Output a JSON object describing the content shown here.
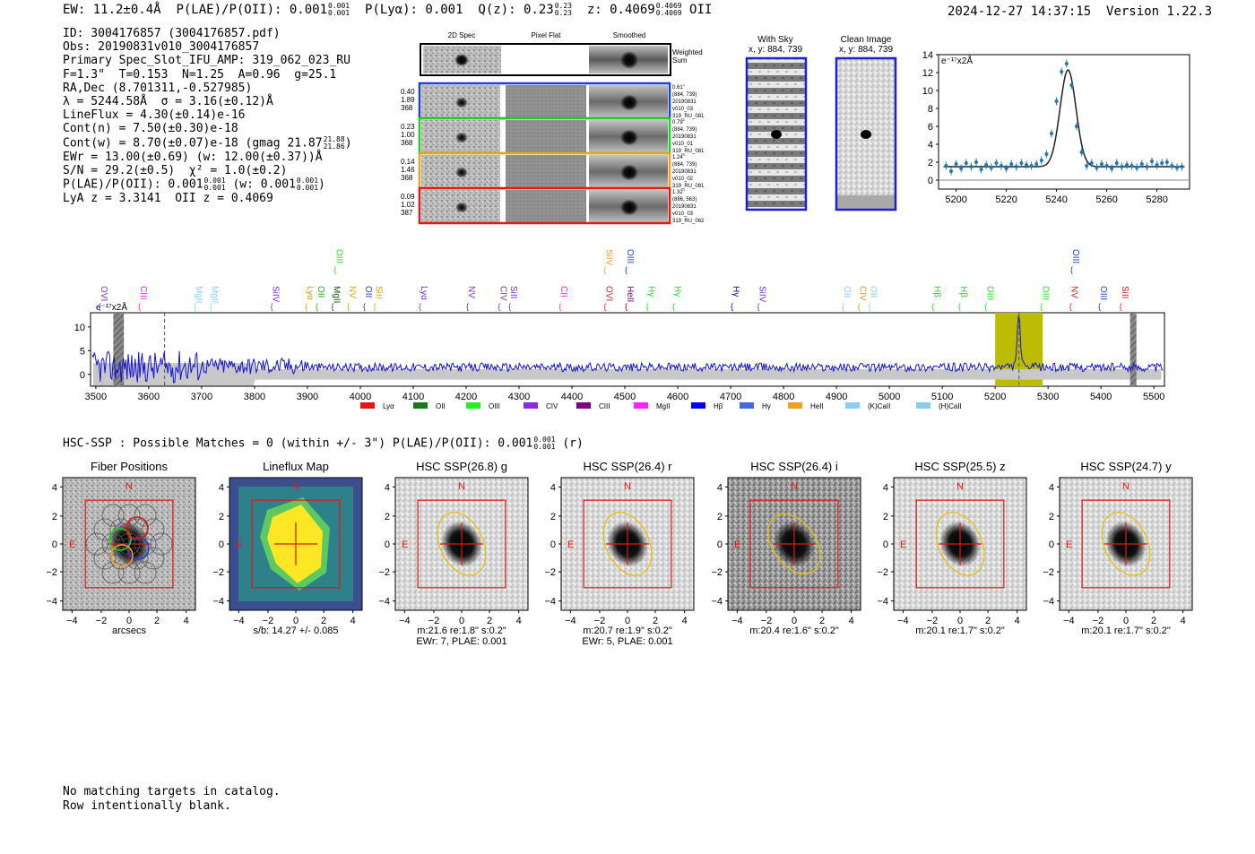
{
  "header": {
    "ew": "EW: 11.2±0.4Å",
    "plae_label": "P(LAE)/P(OII): 0.001",
    "plae_sup": "0.001",
    "plae_sub": "0.001",
    "plya": "P(Lyα): 0.001",
    "qz_label": "Q(z): 0.23",
    "qz_sup": "0.23",
    "qz_sub": "0.23",
    "z_label": "z: 0.4069",
    "z_sup": "0.4069",
    "z_sub": "0.4069",
    "z_line": "OII",
    "timestamp": "2024-12-27 14:37:15",
    "version": "Version 1.22.3"
  },
  "info": {
    "id": "ID: 3004176857 (3004176857.pdf)",
    "obs": "Obs: 20190831v010_3004176857",
    "primary": "Primary Spec_Slot_IFU_AMP: 319_062_023_RU",
    "fit": "F=1.3\"  T=0.153  N=1.25  A=0.96  g=25.1",
    "radec": "RA,Dec (8.701311,-0.527985)",
    "lambda": "λ = 5244.58Å  σ = 3.16(±0.12)Å",
    "lineflux": "LineFlux = 4.30(±0.14)e-16",
    "contn": "Cont(n) = 7.50(±0.30)e-18",
    "contw": "Cont(w) = 8.70(±0.07)e-18 (gmag 21.87",
    "contw_sup": "21.88",
    "contw_sub": "21.86",
    "contw_end": ")",
    "ewr": "EWr = 13.00(±0.69) (w: 12.00(±0.37))Å",
    "sn": "S/N = 29.2(±0.5)  χ² = 1.0(±0.2)",
    "plae": "P(LAE)/P(OII): 0.001",
    "plae_sup": "0.001",
    "plae_sub": "0.001",
    "plae_w": "(w: 0.001",
    "plae_w_sup": "0.001",
    "plae_w_sub": "0.001",
    "plae_w_end": ")",
    "lyaz": "LyA z = 3.3141  OII z = 0.4069"
  },
  "cutouts": {
    "col_titles": [
      "2D Spec",
      "Pixel Flat",
      "Smoothed"
    ],
    "weighted_label": "Weighted\nSum",
    "rows": [
      {
        "vals": [
          "0.40",
          "1.89",
          "368"
        ],
        "info": [
          "0.61\"",
          "(884, 739)",
          "20190831",
          "v010_03",
          "319_RU_081"
        ],
        "color": "#1f3fd1"
      },
      {
        "vals": [
          "0.23",
          "1.00",
          "368"
        ],
        "info": [
          "0.79\"",
          "(884, 739)",
          "20190831",
          "v010_01",
          "319_RU_081"
        ],
        "color": "#22cc22"
      },
      {
        "vals": [
          "0.14",
          "1.46",
          "368"
        ],
        "info": [
          "1.24\"",
          "(884, 739)",
          "20190831",
          "v010_02",
          "319_RU_081"
        ],
        "color": "#f0a020"
      },
      {
        "vals": [
          "0.09",
          "1.02",
          "387"
        ],
        "info": [
          "1.32\"",
          "(886, 563)",
          "20190831",
          "v010_03",
          "319_RU_062"
        ],
        "color": "#e01818"
      }
    ]
  },
  "sky_panels": [
    {
      "title": "With Sky",
      "coords": "x, y: 884, 739"
    },
    {
      "title": "Clean Image",
      "coords": "x, y: 884, 739"
    }
  ],
  "zoom_chart": {
    "type": "line",
    "ylabel": "e⁻¹⁷x2Å",
    "xlim": [
      5193,
      5293
    ],
    "ylim": [
      -1,
      14
    ],
    "xticks": [
      5200,
      5220,
      5240,
      5260,
      5280
    ],
    "yticks": [
      0,
      2,
      4,
      6,
      8,
      10,
      12,
      14
    ],
    "fit": {
      "continuum": 1.5,
      "amplitude": 10.8,
      "center": 5244.58,
      "sigma": 3.16
    },
    "points_x": [
      5196,
      5198,
      5200,
      5202,
      5204,
      5206,
      5208,
      5210,
      5212,
      5214,
      5216,
      5218,
      5220,
      5222,
      5224,
      5226,
      5228,
      5230,
      5232,
      5234,
      5236,
      5238,
      5240,
      5242,
      5244,
      5246,
      5248,
      5250,
      5252,
      5254,
      5256,
      5258,
      5260,
      5262,
      5264,
      5266,
      5268,
      5270,
      5272,
      5274,
      5276,
      5278,
      5280,
      5282,
      5284,
      5286,
      5288,
      5290
    ],
    "points_y": [
      1.6,
      1.0,
      1.8,
      1.3,
      1.9,
      1.5,
      2.0,
      1.2,
      1.7,
      1.4,
      1.9,
      1.6,
      1.3,
      1.8,
      1.5,
      1.9,
      1.7,
      1.6,
      1.8,
      2.2,
      2.9,
      5.2,
      8.8,
      12.1,
      13.0,
      10.6,
      6.0,
      3.1,
      1.6,
      1.9,
      1.4,
      1.8,
      1.6,
      1.3,
      1.9,
      1.5,
      1.7,
      1.6,
      1.4,
      1.8,
      1.5,
      2.1,
      1.7,
      1.9,
      2.0,
      1.6,
      1.4,
      1.5
    ]
  },
  "full_spectrum": {
    "type": "line",
    "ylabel": "e⁻¹⁷x2Å",
    "xlim": [
      3490,
      5520
    ],
    "ylim": [
      -2.5,
      13
    ],
    "xticks": [
      3500,
      3600,
      3700,
      3800,
      3900,
      4000,
      4100,
      4200,
      4300,
      4400,
      4500,
      4600,
      4700,
      4800,
      4900,
      5000,
      5100,
      5200,
      5300,
      5400,
      5500
    ],
    "yticks": [
      0,
      5,
      10
    ],
    "peak": {
      "center": 5244.6,
      "amplitude": 10.5,
      "sigma": 3.2
    },
    "highlight_band": [
      5200,
      5290
    ],
    "masked_bands": [
      [
        3533,
        3553
      ],
      [
        5455,
        5467
      ]
    ],
    "dashed_lines": [
      3630,
      5245
    ],
    "line_labels": [
      {
        "name": "OVI",
        "x": 3510,
        "color": "#7b2fd4",
        "row": 1
      },
      {
        "name": "CIII",
        "x": 3585,
        "color": "#ff22ff",
        "row": 1
      },
      {
        "name": "MgII",
        "x": 3690,
        "color": "#87cefa",
        "row": 1
      },
      {
        "name": "MgII",
        "x": 3720,
        "color": "#87cefa",
        "row": 1
      },
      {
        "name": "SiIV",
        "x": 3835,
        "color": "#7b2fd4",
        "row": 1
      },
      {
        "name": "Lyα",
        "x": 3900,
        "color": "#e0a000",
        "row": 1
      },
      {
        "name": "OII",
        "x": 3920,
        "color": "#22aa22",
        "row": 1
      },
      {
        "name": "MgII",
        "x": 3950,
        "color": "#115511",
        "row": 1
      },
      {
        "name": "OIII",
        "x": 3955,
        "color": "#22dd22",
        "row": 0
      },
      {
        "name": "NV",
        "x": 3980,
        "color": "#e0a000",
        "row": 1
      },
      {
        "name": "SiII",
        "x": 4030,
        "color": "#f0a020",
        "row": 1
      },
      {
        "name": "OII",
        "x": 4010,
        "color": "#1f3fd1",
        "row": 1
      },
      {
        "name": "Lyα",
        "x": 4115,
        "color": "#7b2fd4",
        "row": 1
      },
      {
        "name": "NV",
        "x": 4205,
        "color": "#7b2fd4",
        "row": 1
      },
      {
        "name": "CIV",
        "x": 4265,
        "color": "#7b2fd4",
        "row": 1
      },
      {
        "name": "SiII",
        "x": 4285,
        "color": "#7b2fd4",
        "row": 1
      },
      {
        "name": "CII",
        "x": 4380,
        "color": "#ff22ff",
        "row": 1
      },
      {
        "name": "SiIV",
        "x": 4465,
        "color": "#f0a020",
        "row": 0
      },
      {
        "name": "OIII",
        "x": 4505,
        "color": "#1f3fd1",
        "row": 0
      },
      {
        "name": "OVI",
        "x": 4465,
        "color": "#e01818",
        "row": 1
      },
      {
        "name": "HeII",
        "x": 4505,
        "color": "#800080",
        "row": 1
      },
      {
        "name": "Hγ",
        "x": 4545,
        "color": "#22dd22",
        "row": 1
      },
      {
        "name": "Hγ",
        "x": 4595,
        "color": "#22dd22",
        "row": 1
      },
      {
        "name": "Hγ",
        "x": 4705,
        "color": "#1010a0",
        "row": 1
      },
      {
        "name": "SiIV",
        "x": 4755,
        "color": "#7b2fd4",
        "row": 1
      },
      {
        "name": "OII",
        "x": 4915,
        "color": "#87cefa",
        "row": 1
      },
      {
        "name": "CIV",
        "x": 4945,
        "color": "#e0a000",
        "row": 1
      },
      {
        "name": "OII",
        "x": 4965,
        "color": "#87cefa",
        "row": 1
      },
      {
        "name": "Hβ",
        "x": 5085,
        "color": "#22dd22",
        "row": 1
      },
      {
        "name": "Hβ",
        "x": 5135,
        "color": "#22dd22",
        "row": 1
      },
      {
        "name": "OIII",
        "x": 5185,
        "color": "#22dd22",
        "row": 1
      },
      {
        "name": "OIII",
        "x": 5290,
        "color": "#22dd22",
        "row": 1
      },
      {
        "name": "OIII",
        "x": 5347,
        "color": "#1f3fd1",
        "row": 0
      },
      {
        "name": "NV",
        "x": 5345,
        "color": "#e01818",
        "row": 1
      },
      {
        "name": "OIII",
        "x": 5400,
        "color": "#1f3fd1",
        "row": 1
      },
      {
        "name": "SiII",
        "x": 5440,
        "color": "#e01818",
        "row": 1
      }
    ],
    "legend": [
      {
        "name": "Lyα",
        "color": "#e01818"
      },
      {
        "name": "OII",
        "color": "#1a7a1a"
      },
      {
        "name": "OIII",
        "color": "#22ee22"
      },
      {
        "name": "CIV",
        "color": "#8a2be2"
      },
      {
        "name": "CIII",
        "color": "#800080"
      },
      {
        "name": "MgII",
        "color": "#ff22ff"
      },
      {
        "name": "Hβ",
        "color": "#0000ee"
      },
      {
        "name": "Hγ",
        "color": "#4169e1"
      },
      {
        "name": "HeII",
        "color": "#f0a020"
      },
      {
        "name": "(K)CaII",
        "color": "#87cefa"
      },
      {
        "name": "(H)CaII",
        "color": "#87ceeb"
      }
    ]
  },
  "hsc": {
    "line": "HSC-SSP : Possible Matches = 0 (within +/- 3\")  P(LAE)/P(OII): 0.001",
    "plae_sup": "0.001",
    "plae_sub": "0.001",
    "band": "(r)"
  },
  "imaging": {
    "ticks": [
      "4",
      "2",
      "0",
      "−2",
      "−4"
    ],
    "xticks": [
      "−4",
      "−2",
      "0",
      "2",
      "4"
    ],
    "north": "N",
    "east": "E",
    "panels": [
      {
        "title": "Fiber Positions",
        "caption1": "arcsecs",
        "caption2": "",
        "kind": "fibers"
      },
      {
        "title": "Lineflux Map",
        "caption1": "s/b: 14.27 +/- 0.085",
        "caption2": "",
        "kind": "lineflux"
      },
      {
        "title": "HSC SSP(26.8) g",
        "caption1": "m:21.6  re:1.8\"  s:0.2\"",
        "caption2": "EWr: 7, PLAE: 0.001",
        "kind": "hsc",
        "angle": -25
      },
      {
        "title": "HSC SSP(26.4) r",
        "caption1": "m:20.7  re:1.9\"  s:0.2\"",
        "caption2": "EWr: 5, PLAE: 0.001",
        "kind": "hsc",
        "angle": -25
      },
      {
        "title": "HSC SSP(26.4) i",
        "caption1": "m:20.4  re:1.6\"  s:0.2\"",
        "caption2": "",
        "kind": "hsc",
        "angle": -35
      },
      {
        "title": "HSC SSP(25.5) z",
        "caption1": "m:20.1  re:1.7\"  s:0.2\"",
        "caption2": "",
        "kind": "hsc",
        "angle": -25
      },
      {
        "title": "HSC SSP(24.7) y",
        "caption1": "m:20.1  re:1.7\"  s:0.2\"",
        "caption2": "",
        "kind": "hsc",
        "angle": -25
      }
    ]
  },
  "footer": {
    "line1": "No matching targets in catalog.",
    "line2": "Row intentionally blank."
  }
}
